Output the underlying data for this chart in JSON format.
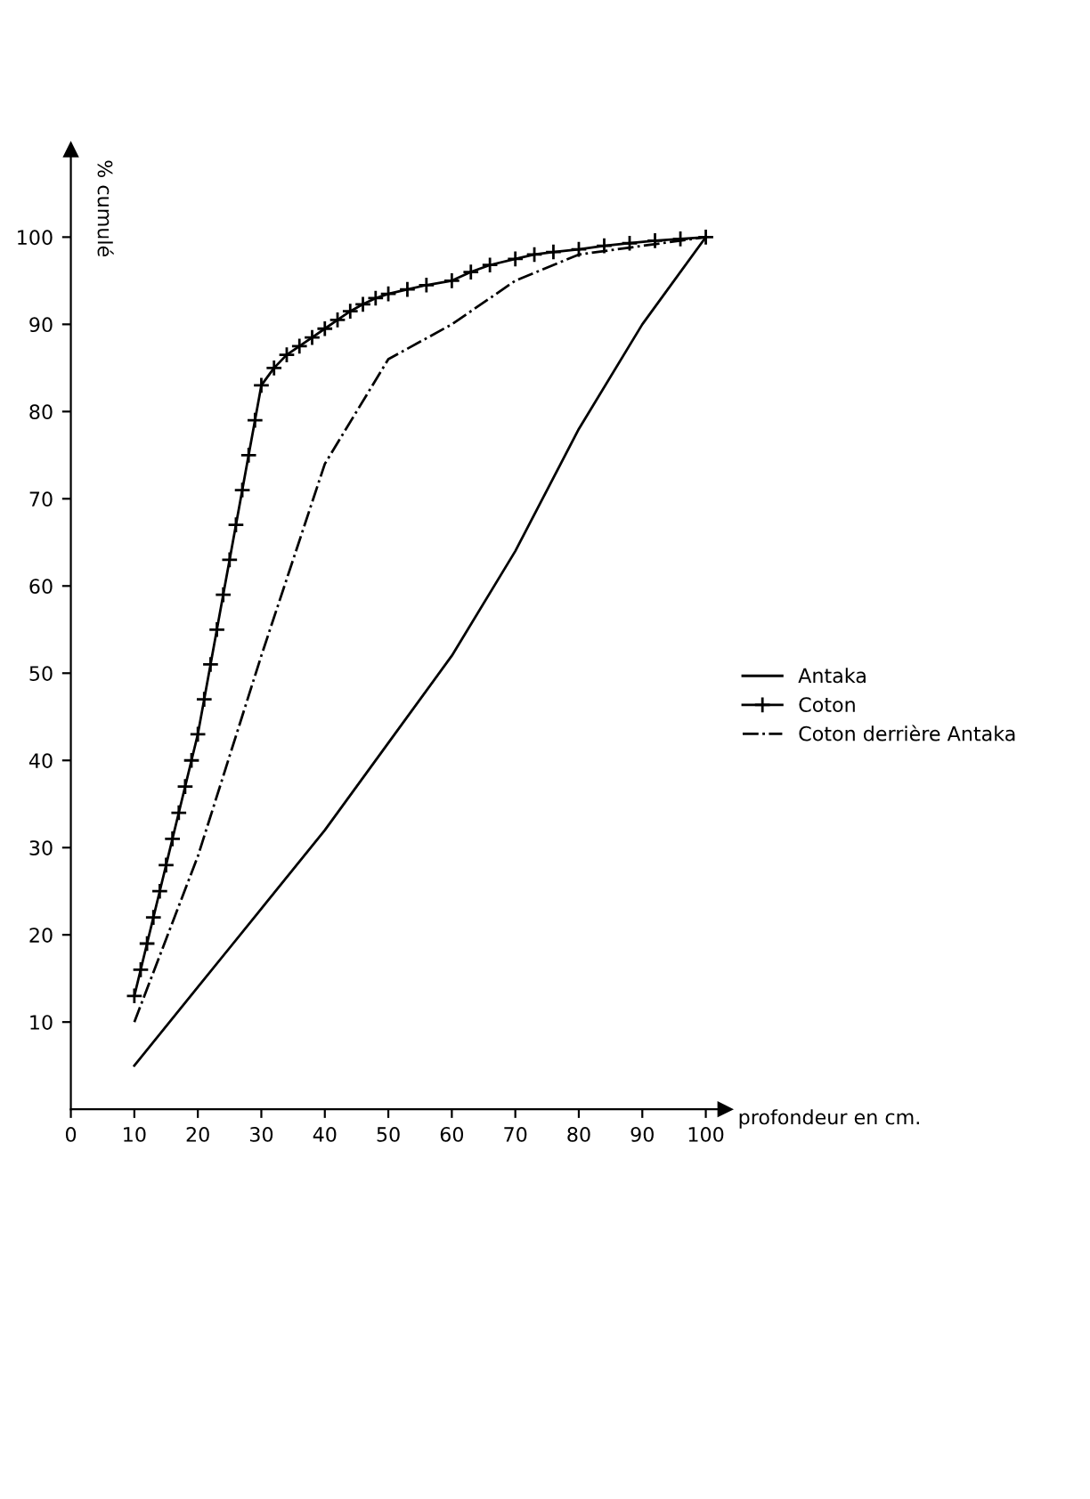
{
  "chart_data": {
    "type": "line",
    "xlabel": "profondeur en cm.",
    "ylabel": "% cumulé",
    "x": [
      10,
      20,
      30,
      40,
      50,
      60,
      70,
      80,
      90,
      100
    ],
    "series": [
      {
        "name": "Antaka",
        "color": "#000000",
        "line_style": "solid",
        "marker": "none",
        "values": [
          5,
          14,
          23,
          32,
          42,
          52,
          64,
          78,
          90,
          100
        ]
      },
      {
        "name": "Coton",
        "color": "#000000",
        "line_style": "solid",
        "marker": "cross",
        "x": [
          10,
          11,
          12,
          13,
          14,
          15,
          16,
          17,
          18,
          19,
          20,
          21,
          22,
          23,
          24,
          25,
          26,
          27,
          28,
          29,
          30,
          32,
          34,
          36,
          38,
          40,
          42,
          44,
          46,
          48,
          50,
          53,
          56,
          60,
          63,
          66,
          70,
          73,
          76,
          80,
          84,
          88,
          92,
          96,
          100
        ],
        "values": [
          13,
          16,
          19,
          22,
          25,
          28,
          31,
          34,
          37,
          40,
          43,
          47,
          51,
          55,
          59,
          63,
          67,
          71,
          75,
          79,
          83,
          85,
          86.5,
          87.5,
          88.5,
          89.5,
          90.5,
          91.5,
          92.3,
          93,
          93.5,
          94,
          94.5,
          95,
          96,
          96.8,
          97.5,
          98,
          98.3,
          98.6,
          99,
          99.3,
          99.6,
          99.8,
          100
        ]
      },
      {
        "name": "Coton derrière Antaka",
        "color": "#000000",
        "line_style": "dashdot",
        "marker": "none",
        "values": [
          10,
          29,
          52,
          74,
          86,
          90,
          95,
          98,
          99,
          100
        ]
      }
    ],
    "xlim": [
      0,
      103
    ],
    "ylim": [
      0,
      110
    ],
    "xticks": [
      0,
      10,
      20,
      30,
      40,
      50,
      60,
      70,
      80,
      90,
      100
    ],
    "yticks": [
      10,
      20,
      30,
      40,
      50,
      60,
      70,
      80,
      90,
      100
    ],
    "grid": false,
    "legend": "right"
  }
}
